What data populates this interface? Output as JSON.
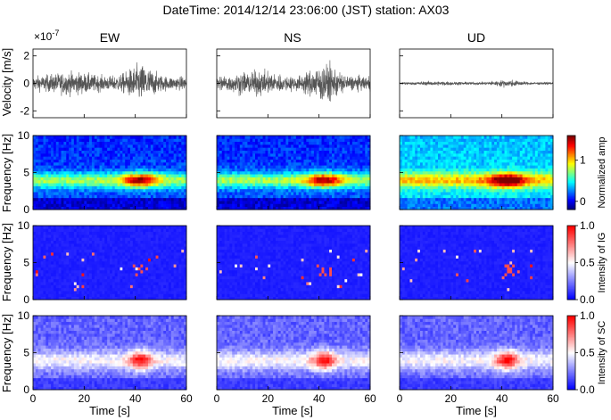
{
  "suptitle": "DateTime: 2014/12/14 23:06:00 (JST) station: AX03",
  "columns": [
    "EW",
    "NS",
    "UD"
  ],
  "rows": {
    "velocity": {
      "ylabel": "Velocity [m/s]",
      "exponent": "×10",
      "exponent_power": "-7"
    },
    "spectrogram": {
      "ylabel": "Frequency [Hz]",
      "colorbar_label": "Normalized amp"
    },
    "ig": {
      "ylabel": "Frequency [Hz]",
      "colorbar_label": "Intensity of IG"
    },
    "sc": {
      "ylabel": "Frequency [Hz]",
      "colorbar_label": "Intensity of SC"
    }
  },
  "xlabel": "Time [s]",
  "chart_data": {
    "type": "heatmap",
    "x_range": [
      0,
      60
    ],
    "x_ticks": [
      "0",
      "20",
      "40",
      "60"
    ],
    "velocity_ylim": [
      -2.5,
      2.5
    ],
    "velocity_ticks": [
      "2",
      "0",
      "-2"
    ],
    "frequency_ylim": [
      0,
      10
    ],
    "frequency_ticks": [
      "10",
      "5",
      "0"
    ],
    "colorbars": {
      "spectrogram": {
        "colormap": "jet",
        "range": [
          -0.2,
          1.6
        ],
        "ticks": [
          "1",
          "0"
        ]
      },
      "ig": {
        "colormap": "bwr",
        "range": [
          0,
          1
        ],
        "ticks": [
          "1.0",
          "0.5",
          "0.0"
        ]
      },
      "sc": {
        "colormap": "bwr",
        "range": [
          0,
          1
        ],
        "ticks": [
          "1.0",
          "0.5",
          "0.0"
        ]
      }
    },
    "panels": [
      {
        "component": "EW",
        "velocity_peak": 2.2,
        "burst_center_s": 42,
        "burst_freq_hz": 4
      },
      {
        "component": "NS",
        "velocity_peak": 2.3,
        "burst_center_s": 42,
        "burst_freq_hz": 4
      },
      {
        "component": "UD",
        "velocity_peak": 0.4,
        "burst_center_s": 42,
        "burst_freq_hz": 4
      }
    ]
  },
  "colors": {
    "waveform": "#555555",
    "axis": "#000000"
  }
}
